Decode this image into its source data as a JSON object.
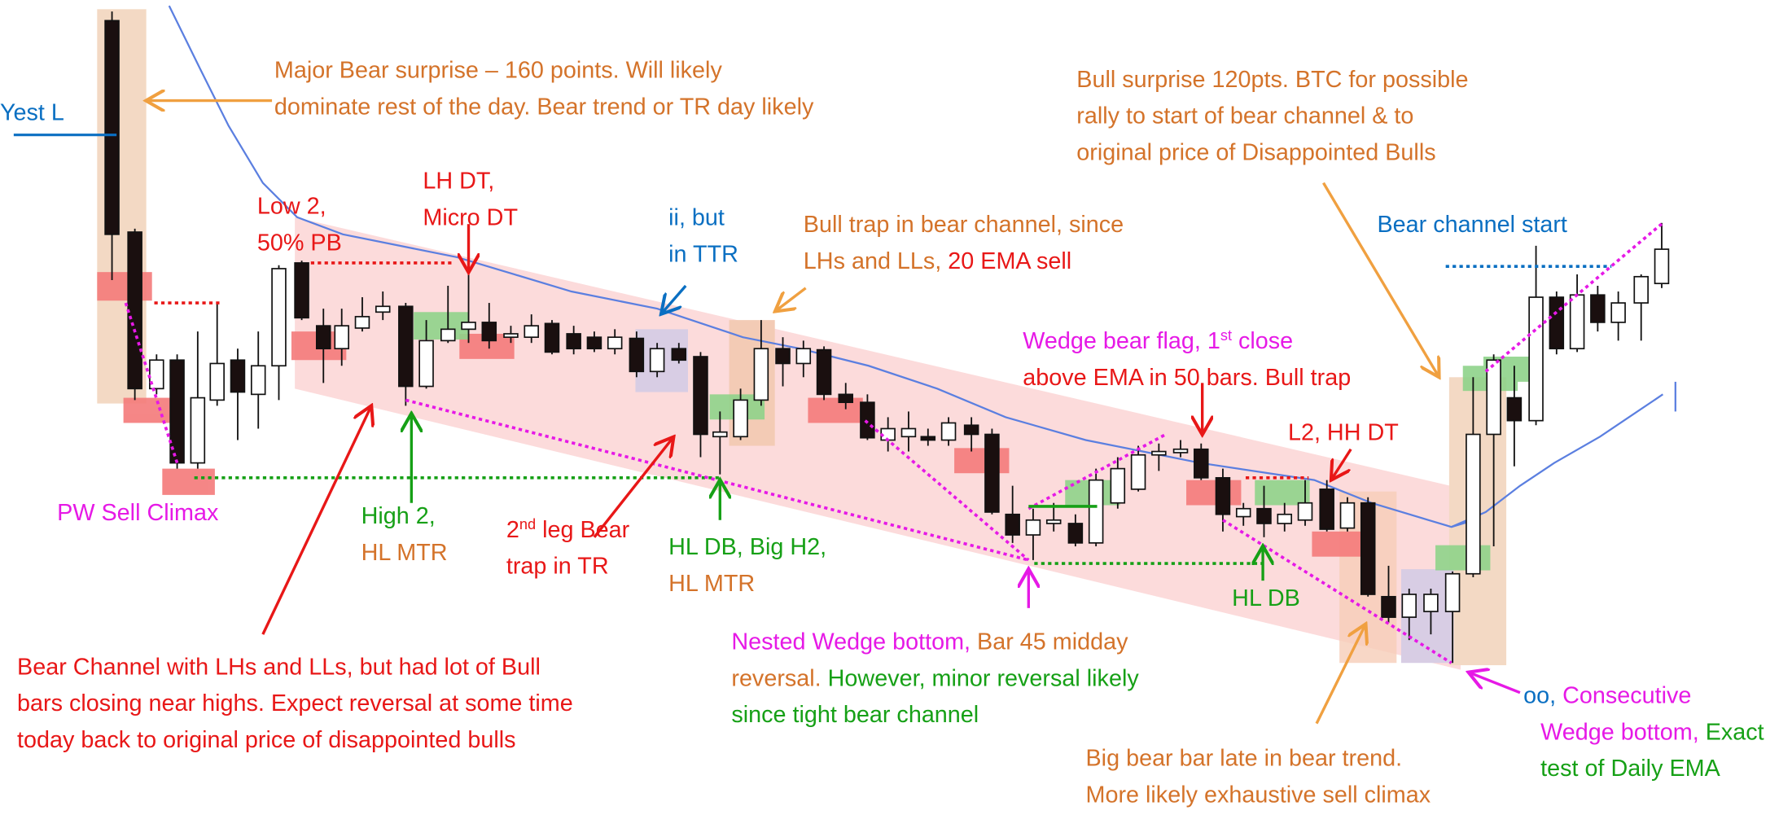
{
  "annotations": [
    {
      "lines": [
        [
          {
            "text": "Yest L",
            "color": "#0a6fc2"
          }
        ]
      ]
    },
    {
      "lines": [
        [
          {
            "text": "Major Bear surprise – 160 points. Will likely",
            "color": "#d4732a"
          }
        ],
        [
          {
            "text": "dominate rest of the day. Bear trend or TR day likely",
            "color": "#d4732a"
          }
        ]
      ]
    },
    {
      "lines": [
        [
          {
            "text": "Low 2,",
            "color": "#e81717"
          }
        ],
        [
          {
            "text": "50% PB",
            "color": "#e81717"
          }
        ]
      ]
    },
    {
      "lines": [
        [
          {
            "text": "LH DT,",
            "color": "#e81717"
          }
        ],
        [
          {
            "text": "Micro DT",
            "color": "#e81717"
          }
        ]
      ]
    },
    {
      "lines": [
        [
          {
            "text": "ii, but",
            "color": "#0a6fc2"
          }
        ],
        [
          {
            "text": "in TTR",
            "color": "#0a6fc2"
          }
        ]
      ]
    },
    {
      "lines": [
        [
          {
            "text": "Bull trap in bear channel, since",
            "color": "#d4732a"
          }
        ],
        [
          {
            "text": "LHs and LLs, ",
            "color": "#d4732a"
          },
          {
            "text": "20 EMA sell",
            "color": "#e81717"
          }
        ]
      ]
    },
    {
      "lines": [
        [
          {
            "text": "Bull surprise 120pts. BTC for possible",
            "color": "#d4732a"
          }
        ],
        [
          {
            "text": "rally to start of bear channel & to",
            "color": "#d4732a"
          }
        ],
        [
          {
            "text": "original price of Disappointed Bulls",
            "color": "#d4732a"
          }
        ]
      ]
    },
    {
      "lines": [
        [
          {
            "text": "Bear channel start",
            "color": "#0a6fc2"
          }
        ]
      ]
    },
    {
      "lines": [
        [
          {
            "text": "Wedge bear flag, 1",
            "color": "#e619e6"
          },
          {
            "text": "st",
            "color": "#e619e6",
            "sup": true
          },
          {
            "text": " close",
            "color": "#e619e6"
          }
        ],
        [
          {
            "text": "above EMA in 50 bars. Bull trap",
            "color": "#e81717"
          }
        ]
      ]
    },
    {
      "lines": [
        [
          {
            "text": "L2, HH DT",
            "color": "#e81717"
          }
        ]
      ]
    },
    {
      "lines": [
        [
          {
            "text": "PW Sell Climax",
            "color": "#e619e6"
          }
        ]
      ]
    },
    {
      "lines": [
        [
          {
            "text": "High 2,",
            "color": "#16a016"
          }
        ],
        [
          {
            "text": "HL MTR",
            "color": "#d4732a"
          }
        ]
      ]
    },
    {
      "lines": [
        [
          {
            "text": "2",
            "color": "#e81717"
          },
          {
            "text": "nd",
            "color": "#e81717",
            "sup": true
          },
          {
            "text": " leg Bear",
            "color": "#e81717"
          }
        ],
        [
          {
            "text": "trap in TR",
            "color": "#e81717"
          }
        ]
      ]
    },
    {
      "lines": [
        [
          {
            "text": "HL DB, Big H2,",
            "color": "#16a016"
          }
        ],
        [
          {
            "text": "HL MTR",
            "color": "#d4732a"
          }
        ]
      ]
    },
    {
      "lines": [
        [
          {
            "text": "HL DB",
            "color": "#16a016"
          }
        ]
      ]
    },
    {
      "lines": [
        [
          {
            "text": "Nested Wedge bottom, ",
            "color": "#e619e6"
          },
          {
            "text": "Bar 45 midday",
            "color": "#d4732a"
          }
        ],
        [
          {
            "text": "reversal. ",
            "color": "#d4732a"
          },
          {
            "text": "However, minor reversal likely",
            "color": "#16a016"
          }
        ],
        [
          {
            "text": "since tight bear channel",
            "color": "#16a016"
          }
        ]
      ]
    },
    {
      "lines": [
        [
          {
            "text": "Bear Channel with LHs and LLs, but had lot of Bull",
            "color": "#e81717"
          }
        ],
        [
          {
            "text": "bars closing near highs. Expect reversal at some time",
            "color": "#e81717"
          }
        ],
        [
          {
            "text": "today back to original price of disappointed bulls",
            "color": "#e81717"
          }
        ]
      ]
    },
    {
      "lines": [
        [
          {
            "text": "Big bear bar late in bear trend.",
            "color": "#d4732a"
          }
        ],
        [
          {
            "text": "More likely exhaustive sell climax",
            "color": "#d4732a"
          }
        ]
      ]
    },
    {
      "lines": [
        [
          {
            "text": "oo, ",
            "color": "#0a6fc2"
          },
          {
            "text": "Consecutive",
            "color": "#e619e6"
          }
        ],
        [
          {
            "text": "Wedge bottom, ",
            "color": "#e619e6"
          },
          {
            "text": "Exact",
            "color": "#16a016"
          }
        ],
        [
          {
            "text": "test of Daily EMA",
            "color": "#16a016"
          }
        ]
      ]
    }
  ]
}
